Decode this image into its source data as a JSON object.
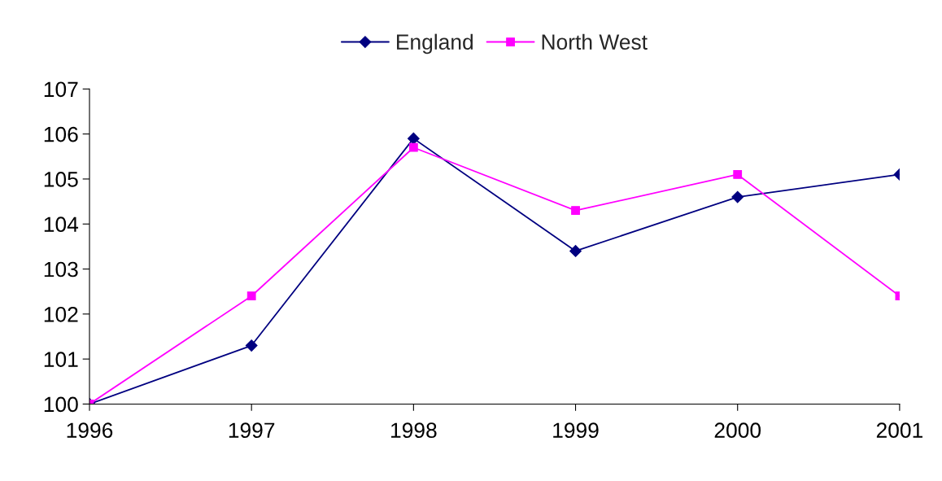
{
  "chart_data": {
    "type": "line",
    "categories": [
      "1996",
      "1997",
      "1998",
      "1999",
      "2000",
      "2001"
    ],
    "series": [
      {
        "name": "England",
        "color": "#000080",
        "marker": "diamond",
        "values": [
          100,
          101.3,
          105.9,
          103.4,
          104.6,
          105.1
        ]
      },
      {
        "name": "North West",
        "color": "#ff00ff",
        "marker": "square",
        "values": [
          100,
          102.4,
          105.7,
          104.3,
          105.1,
          102.4
        ]
      }
    ],
    "ylim": [
      100,
      107
    ],
    "yticks": [
      100,
      101,
      102,
      103,
      104,
      105,
      106,
      107
    ],
    "grid": false,
    "legend": "top",
    "line_style": "solid"
  }
}
